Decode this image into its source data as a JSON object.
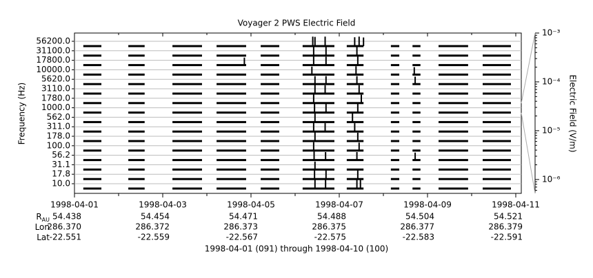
{
  "chart_data": {
    "type": "stacked-spectrum",
    "title": "Voyager 2 PWS Electric Field",
    "ylabel": "Frequency (Hz)",
    "y2label": "Electric Field (V/m)",
    "xlim": [
      0,
      10
    ],
    "xticks": [
      {
        "value": 0,
        "label": "1998-04-01"
      },
      {
        "value": 2,
        "label": "1998-04-03"
      },
      {
        "value": 4,
        "label": "1998-04-05"
      },
      {
        "value": 6,
        "label": "1998-04-07"
      },
      {
        "value": 8,
        "label": "1998-04-09"
      },
      {
        "value": 10,
        "label": "1998-04-11"
      }
    ],
    "xminor": [
      1,
      3,
      5,
      7,
      9
    ],
    "y2lim": [
      5.2e-07,
      0.001
    ],
    "y2log": true,
    "y2ticks": [
      {
        "value": 0.001,
        "label": "10⁻³"
      },
      {
        "value": 0.0001,
        "label": "10⁻⁴"
      },
      {
        "value": 1e-05,
        "label": "10⁻⁵"
      },
      {
        "value": 1e-06,
        "label": "10⁻⁶"
      }
    ],
    "coverage": [
      [
        0.2,
        0.61
      ],
      [
        1.22,
        1.59
      ],
      [
        2.22,
        2.89
      ],
      [
        3.22,
        3.89
      ],
      [
        4.22,
        4.64
      ],
      [
        5.17,
        5.89
      ],
      [
        6.17,
        6.55
      ],
      [
        7.17,
        7.36
      ],
      [
        7.66,
        7.84
      ],
      [
        8.25,
        8.92
      ],
      [
        9.25,
        9.89
      ]
    ],
    "color": "#000000",
    "series": [
      {
        "name": "56200.0",
        "x": [
          5.4,
          5.45,
          5.68,
          6.35,
          6.45,
          6.55
        ],
        "values": [
          0.001,
          0.0008,
          0.001,
          0.0006,
          0.001,
          0.0005
        ]
      },
      {
        "name": "31100.0",
        "x": [
          5.42,
          5.7,
          6.4
        ],
        "values": [
          0.0006,
          0.0005,
          0.0006
        ]
      },
      {
        "name": "17800.0",
        "x": [
          3.85,
          5.42,
          5.7,
          6.42
        ],
        "values": [
          0.0002,
          0.0005,
          0.0004,
          0.0005
        ]
      },
      {
        "name": "10000.0",
        "x": [
          5.38,
          6.38,
          7.7
        ],
        "values": [
          0.0003,
          0.0004,
          0.0002
        ]
      },
      {
        "name": "5620.0",
        "x": [
          5.45,
          5.7,
          6.4,
          7.72
        ],
        "values": [
          0.0003,
          0.0003,
          0.0003,
          0.0002
        ]
      },
      {
        "name": "3110.0",
        "x": [
          5.45,
          5.68,
          6.45
        ],
        "values": [
          0.0005,
          0.0004,
          0.0004
        ]
      },
      {
        "name": "1780.0",
        "x": [
          5.42,
          6.5
        ],
        "values": [
          0.0006,
          0.0004
        ]
      },
      {
        "name": "1000.0",
        "x": [
          5.44,
          5.7,
          6.42
        ],
        "values": [
          0.0008,
          0.0005,
          0.0006
        ]
      },
      {
        "name": "562.0",
        "x": [
          5.45,
          6.3
        ],
        "values": [
          0.0006,
          0.0005
        ]
      },
      {
        "name": "311.0",
        "x": [
          5.42,
          5.68,
          6.35
        ],
        "values": [
          0.0005,
          0.0004,
          0.0004
        ]
      },
      {
        "name": "178.0",
        "x": [
          5.45,
          6.42
        ],
        "values": [
          0.0005,
          0.0004
        ]
      },
      {
        "name": "100.0",
        "x": [
          5.42,
          6.45
        ],
        "values": [
          0.0004,
          0.0003
        ]
      },
      {
        "name": "56.2",
        "x": [
          5.43,
          5.69,
          6.4,
          7.72
        ],
        "values": [
          0.0005,
          0.0003,
          0.0003,
          0.0002
        ]
      },
      {
        "name": "31.1",
        "x": [
          5.45
        ],
        "values": [
          0.0003
        ]
      },
      {
        "name": "17.8",
        "x": [
          5.44,
          5.7,
          6.42
        ],
        "values": [
          0.0006,
          0.0005,
          0.0006
        ]
      },
      {
        "name": "10.0",
        "x": [
          5.45,
          5.69,
          6.4,
          6.48
        ],
        "values": [
          0.0006,
          0.0005,
          0.0006,
          0.0005
        ]
      }
    ],
    "ephemeris": [
      {
        "label": "R",
        "sub": "AU",
        "values": [
          "54.438",
          "54.454",
          "54.471",
          "54.488",
          "54.504",
          "54.521"
        ]
      },
      {
        "label": "Lon",
        "values": [
          "286.370",
          "286.372",
          "286.373",
          "286.375",
          "286.377",
          "286.379"
        ]
      },
      {
        "label": "Lat",
        "values": [
          "-22.551",
          "-22.559",
          "-22.567",
          "-22.575",
          "-22.583",
          "-22.591"
        ]
      }
    ],
    "footnote": "1998-04-01 (091) through 1998-04-10 (100)"
  }
}
